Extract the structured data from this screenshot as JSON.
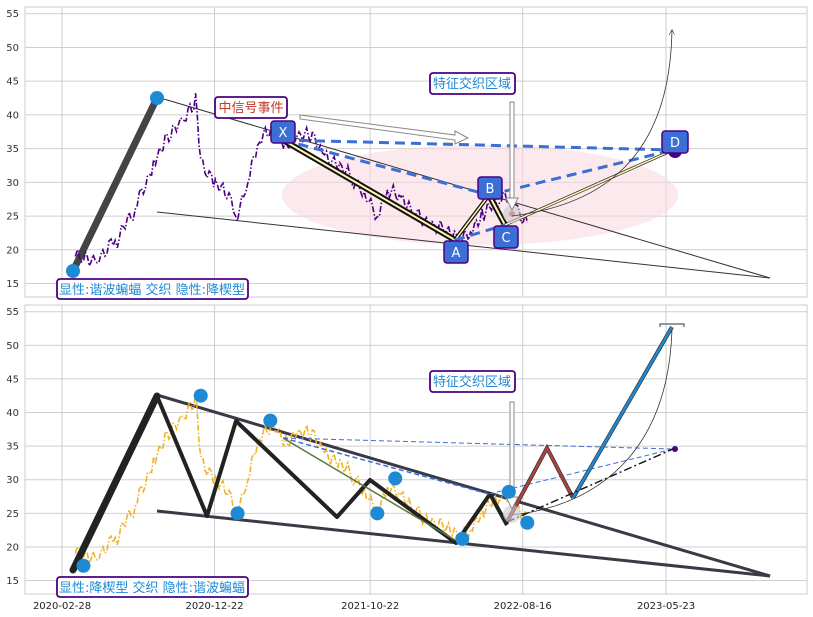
{
  "chart_data": [
    {
      "type": "line",
      "panel": "top",
      "ylim": [
        13,
        56
      ],
      "y_ticks": [
        "15",
        "20",
        "25",
        "30",
        "35",
        "40",
        "45",
        "50",
        "55"
      ],
      "grid": true,
      "colors": {
        "price": "#4b0082",
        "accent": "#3b6fd6",
        "zone": "#f6cdd5",
        "box_border": "#4b0082"
      },
      "price_series": [
        [
          "2020-03-25",
          19.0
        ],
        [
          "2020-04-10",
          18.4
        ],
        [
          "2020-05-10",
          19.2
        ],
        [
          "2020-06-15",
          21.5
        ],
        [
          "2020-07-20",
          26.0
        ],
        [
          "2020-08-25",
          33.0
        ],
        [
          "2020-09-20",
          37.0
        ],
        [
          "2020-10-20",
          38.5
        ],
        [
          "2020-11-15",
          42.0
        ],
        [
          "2020-11-25",
          33.5
        ],
        [
          "2020-12-20",
          30.0
        ],
        [
          "2021-01-15",
          28.0
        ],
        [
          "2021-02-05",
          25.0
        ],
        [
          "2021-02-25",
          31.0
        ],
        [
          "2021-03-20",
          36.0
        ],
        [
          "2021-04-15",
          38.0
        ],
        [
          "2021-05-10",
          36.0
        ],
        [
          "2021-06-05",
          37.0
        ],
        [
          "2021-07-01",
          36.5
        ],
        [
          "2021-07-25",
          34.0
        ],
        [
          "2021-08-20",
          33.0
        ],
        [
          "2021-09-20",
          30.0
        ],
        [
          "2021-10-15",
          27.5
        ],
        [
          "2021-11-05",
          25.5
        ],
        [
          "2021-11-25",
          29.0
        ],
        [
          "2021-12-25",
          27.0
        ],
        [
          "2022-01-25",
          25.0
        ],
        [
          "2022-02-20",
          24.0
        ],
        [
          "2022-03-20",
          22.5
        ],
        [
          "2022-04-20",
          21.3
        ],
        [
          "2022-05-10",
          23.5
        ],
        [
          "2022-06-01",
          25.5
        ],
        [
          "2022-07-01",
          27.0
        ],
        [
          "2022-07-25",
          28.3
        ],
        [
          "2022-08-10",
          25.5
        ],
        [
          "2022-08-25",
          24.0
        ]
      ],
      "pattern_points": [
        {
          "label": "X",
          "date": "2021-06-10",
          "value": 36.5
        },
        {
          "label": "A",
          "date": "2022-04-20",
          "value": 21.3
        },
        {
          "label": "B",
          "date": "2022-07-25",
          "value": 28.3
        },
        {
          "label": "C",
          "date": "2022-08-25",
          "value": 24.4
        },
        {
          "label": "D",
          "date": "2023-06-15",
          "value": 34.8
        }
      ],
      "annotations": {
        "signal": "中信号事件",
        "zone": "特征交织区域",
        "caption": "显性:谐波蝙蝠 交织 隐性:降楔型"
      }
    },
    {
      "type": "line",
      "panel": "bottom",
      "ylim": [
        13,
        56
      ],
      "y_ticks": [
        "15",
        "20",
        "25",
        "30",
        "35",
        "40",
        "45",
        "50",
        "55"
      ],
      "x_ticks": [
        "2020-02-28",
        "2020-12-22",
        "2021-10-22",
        "2022-08-16",
        "2023-05-23"
      ],
      "grid": true,
      "colors": {
        "price": "#f0b429",
        "accent": "#3b6fd6",
        "pivot": "#1e8ad6",
        "projection_up": "#1e8ad6",
        "projection_mid": "#b04040"
      },
      "price_series": [
        [
          "2020-03-25",
          19.0
        ],
        [
          "2020-04-10",
          18.4
        ],
        [
          "2020-05-10",
          19.2
        ],
        [
          "2020-06-15",
          21.5
        ],
        [
          "2020-07-20",
          26.0
        ],
        [
          "2020-08-25",
          33.0
        ],
        [
          "2020-09-20",
          37.0
        ],
        [
          "2020-10-20",
          38.5
        ],
        [
          "2020-11-15",
          42.0
        ],
        [
          "2020-11-25",
          33.5
        ],
        [
          "2020-12-20",
          30.0
        ],
        [
          "2021-01-15",
          28.0
        ],
        [
          "2021-02-05",
          25.0
        ],
        [
          "2021-02-25",
          31.0
        ],
        [
          "2021-03-20",
          36.0
        ],
        [
          "2021-04-15",
          38.0
        ],
        [
          "2021-05-10",
          36.0
        ],
        [
          "2021-06-05",
          37.0
        ],
        [
          "2021-07-01",
          36.5
        ],
        [
          "2021-07-25",
          34.0
        ],
        [
          "2021-08-20",
          33.0
        ],
        [
          "2021-09-20",
          30.0
        ],
        [
          "2021-10-15",
          27.5
        ],
        [
          "2021-11-05",
          25.5
        ],
        [
          "2021-11-25",
          29.0
        ],
        [
          "2021-12-25",
          27.0
        ],
        [
          "2022-01-25",
          25.0
        ],
        [
          "2022-02-20",
          24.0
        ],
        [
          "2022-03-20",
          22.5
        ],
        [
          "2022-04-20",
          21.3
        ],
        [
          "2022-05-10",
          23.5
        ],
        [
          "2022-06-01",
          25.5
        ],
        [
          "2022-07-01",
          27.0
        ],
        [
          "2022-07-25",
          28.3
        ],
        [
          "2022-08-10",
          25.5
        ],
        [
          "2022-08-25",
          24.0
        ]
      ],
      "pivots": [
        {
          "date": "2020-04-10",
          "value": 17.2
        },
        {
          "date": "2020-11-25",
          "value": 42.5
        },
        {
          "date": "2021-02-05",
          "value": 25.0
        },
        {
          "date": "2021-04-10",
          "value": 38.8
        },
        {
          "date": "2021-11-05",
          "value": 25.0
        },
        {
          "date": "2021-12-10",
          "value": 30.2
        },
        {
          "date": "2022-04-20",
          "value": 21.2
        },
        {
          "date": "2022-07-20",
          "value": 28.2
        },
        {
          "date": "2022-08-25",
          "value": 23.6
        }
      ],
      "annotations": {
        "zone": "特征交织区域",
        "caption": "显性:降楔型 交织 隐性:谐波蝙蝠"
      }
    }
  ]
}
